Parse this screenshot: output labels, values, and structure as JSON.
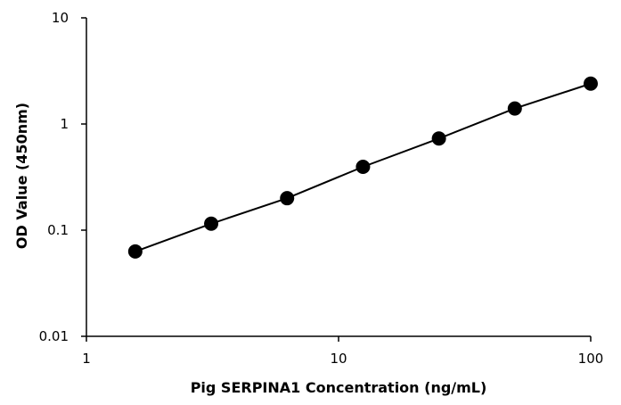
{
  "chart_data": {
    "type": "scatter",
    "title": "",
    "xlabel": "Pig SERPINA1 Concentration (ng/mL)",
    "ylabel": "OD Value (450nm)",
    "x_scale": "log",
    "y_scale": "log",
    "xlim": [
      1,
      100
    ],
    "ylim": [
      0.01,
      10
    ],
    "x_ticks": [
      1,
      10,
      100
    ],
    "x_tick_labels": [
      "1",
      "10",
      "100"
    ],
    "y_ticks": [
      0.01,
      0.1,
      1,
      10
    ],
    "y_tick_labels": [
      "0.01",
      "0.1",
      "1",
      "10"
    ],
    "grid": false,
    "legend": "none",
    "series": [
      {
        "x": [
          1.5625,
          3.125,
          6.25,
          12.5,
          25,
          50,
          100
        ],
        "y": [
          0.063,
          0.115,
          0.2,
          0.395,
          0.73,
          1.4,
          2.4
        ],
        "color": "#000000",
        "marker": "circle",
        "connected": true
      }
    ]
  }
}
